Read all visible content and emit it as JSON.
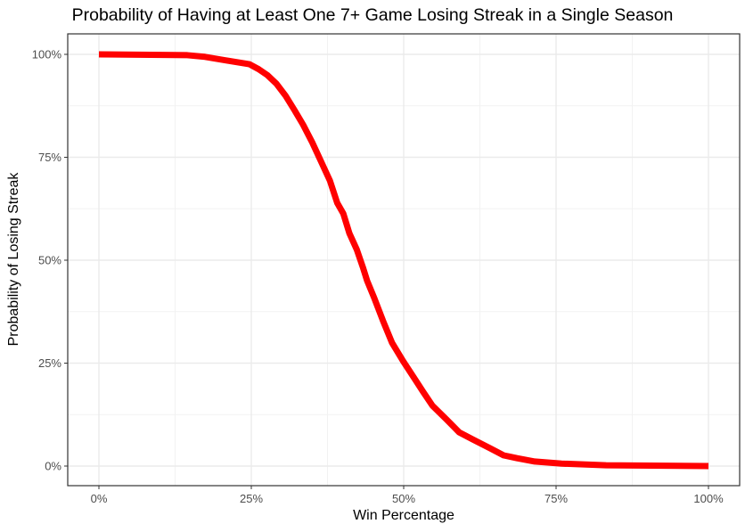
{
  "chart_data": {
    "type": "line",
    "title": "Probability of Having at Least One 7+ Game Losing Streak in a Single Season",
    "xlabel": "Win Percentage",
    "ylabel": "Probability of Losing Streak",
    "xlim": [
      0,
      100
    ],
    "ylim": [
      0,
      100
    ],
    "x_ticks": [
      "0%",
      "25%",
      "50%",
      "75%",
      "100%"
    ],
    "y_ticks": [
      "0%",
      "25%",
      "50%",
      "75%",
      "100%"
    ],
    "grid": true,
    "legend": "none",
    "series": [
      {
        "color": "#ff0000",
        "x": [
          0,
          14.5,
          17.4,
          21,
          24.7,
          26.2,
          27.6,
          29.1,
          30.6,
          32.1,
          33.5,
          35,
          36.5,
          37.9,
          39.1,
          40.1,
          41.1,
          42.3,
          43.3,
          44,
          45.2,
          46.6,
          48.1,
          49.9,
          51.8,
          53.2,
          54.7,
          56.9,
          59.1,
          61.3,
          64.2,
          66.4,
          68.6,
          71.5,
          75.9,
          83.2,
          100
        ],
        "y": [
          100,
          99.8,
          99.4,
          98.5,
          97.6,
          96.4,
          95,
          92.9,
          90,
          86.4,
          82.9,
          78.6,
          73.8,
          69.3,
          63.9,
          61.3,
          56.5,
          52.6,
          48.3,
          45,
          40.7,
          35.3,
          29.9,
          25.5,
          21.2,
          18,
          14.7,
          11.5,
          8.2,
          6.5,
          4.3,
          2.6,
          1.9,
          1.1,
          0.6,
          0.2,
          0
        ]
      }
    ]
  }
}
